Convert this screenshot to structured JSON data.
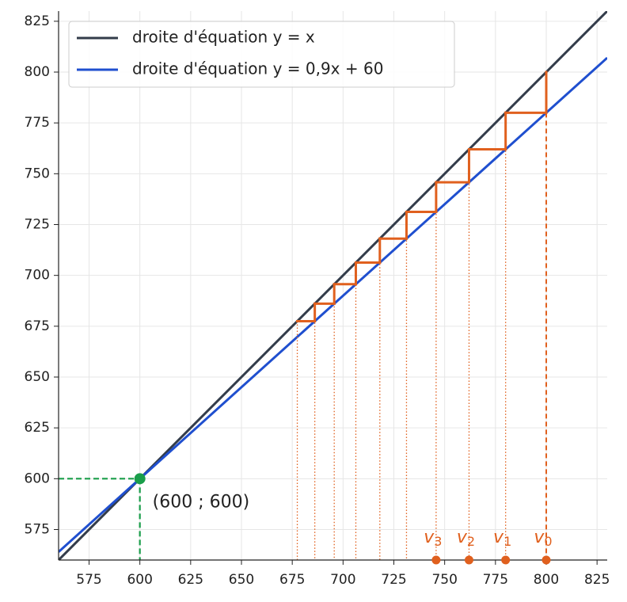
{
  "chart_data": {
    "type": "cobweb",
    "series": [
      {
        "name": "droite d'équation y = x",
        "color": "#333c4a",
        "slope": 1,
        "intercept": 0
      },
      {
        "name": "droite d'équation y = 0,9x + 60",
        "color": "#1f4fcf",
        "slope": 0.9,
        "intercept": 60
      }
    ],
    "sequence": {
      "color": "#e0601e",
      "values": [
        800,
        780,
        762,
        745.8,
        731.22,
        718.1,
        706.29,
        695.66,
        686.09,
        677.48
      ],
      "labels": [
        {
          "symbol": "v",
          "index": "0"
        },
        {
          "symbol": "v",
          "index": "1"
        },
        {
          "symbol": "v",
          "index": "2"
        },
        {
          "symbol": "v",
          "index": "3"
        }
      ]
    },
    "fixed_point": {
      "x": 600,
      "y": 600,
      "label": "(600 ; 600)",
      "color": "#1a9e4a"
    },
    "xlim": [
      560,
      830
    ],
    "ylim": [
      560,
      830
    ],
    "xticks": [
      575,
      600,
      625,
      650,
      675,
      700,
      725,
      750,
      775,
      800,
      825
    ],
    "yticks": [
      575,
      600,
      625,
      650,
      675,
      700,
      725,
      750,
      775,
      800,
      825
    ],
    "grid": true,
    "legend": "upper left"
  }
}
